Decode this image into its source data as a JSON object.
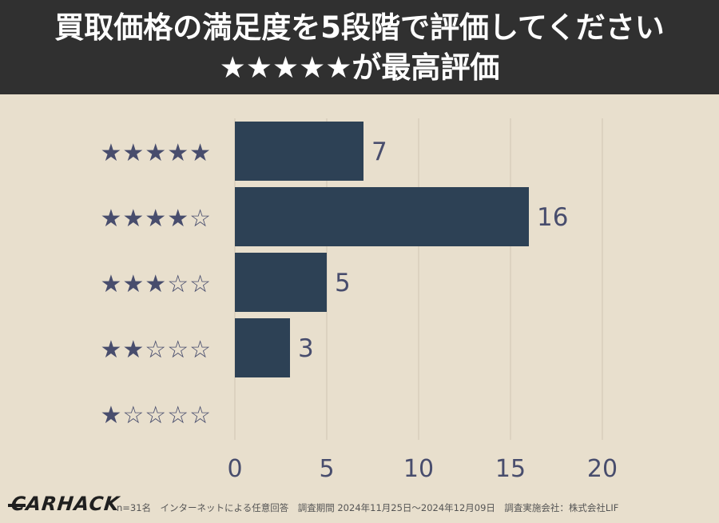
{
  "header": {
    "title_line1": "買取価格の満足度を5段階で評価してください",
    "title_line2": "★★★★★が最高評価"
  },
  "chart_data": {
    "type": "bar",
    "orientation": "horizontal",
    "categories": [
      "★★★★★",
      "★★★★☆",
      "★★★☆☆",
      "★★☆☆☆",
      "★☆☆☆☆"
    ],
    "values": [
      7,
      16,
      5,
      3,
      0
    ],
    "xlim": [
      0,
      20
    ],
    "xticks": [
      0,
      5,
      10,
      15,
      20
    ],
    "grid": "vertical",
    "bar_color": "#2d4155",
    "label_color": "#484d6d"
  },
  "footer": {
    "logo": "CARHACK",
    "note": "n=31名　インターネットによる任意回答　調査期間 2024年11月25日～2024年12月09日　調査実施会社：株式会社LIF"
  }
}
